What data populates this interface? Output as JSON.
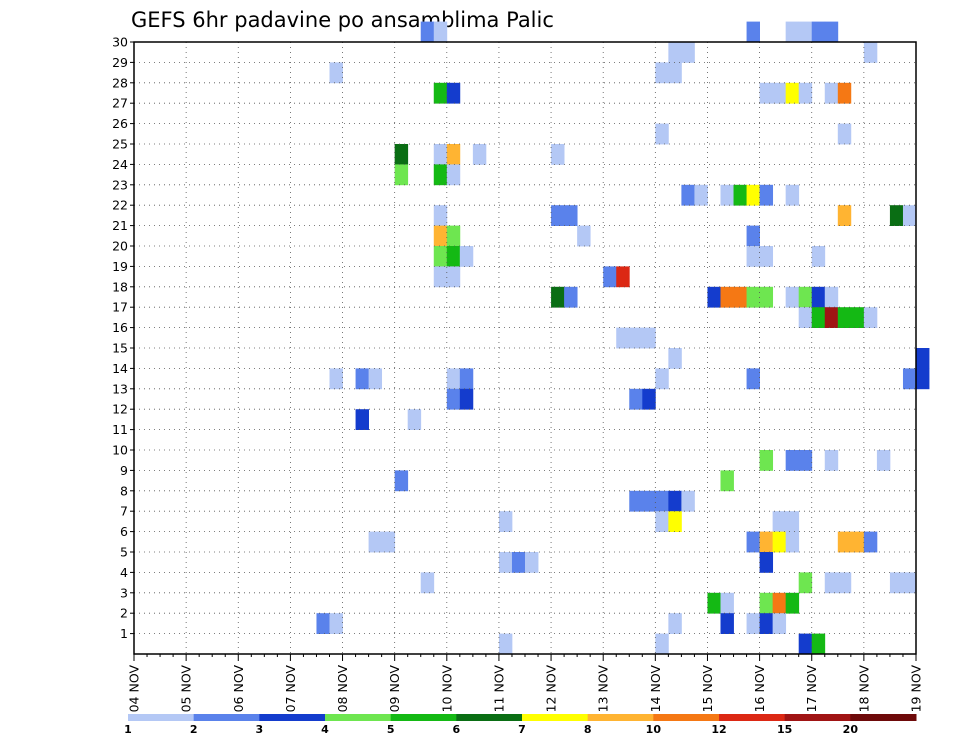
{
  "chart_data": {
    "type": "heatmap",
    "title": "GEFS 6hr padavine po ansamblima Palic",
    "x_tick_labels": [
      "04 NOV",
      "05 NOV",
      "06 NOV",
      "07 NOV",
      "08 NOV",
      "09 NOV",
      "10 NOV",
      "11 NOV",
      "12 NOV",
      "13 NOV",
      "14 NOV",
      "15 NOV",
      "16 NOV",
      "17 NOV",
      "18 NOV",
      "19 NOV"
    ],
    "y_tick_labels": [
      "1",
      "2",
      "3",
      "4",
      "5",
      "6",
      "7",
      "8",
      "9",
      "10",
      "11",
      "12",
      "13",
      "14",
      "15",
      "16",
      "17",
      "18",
      "19",
      "20",
      "21",
      "22",
      "23",
      "24",
      "25",
      "26",
      "27",
      "28",
      "29",
      "30"
    ],
    "time_step_hours": 6,
    "grid": true,
    "legend": {
      "placement": "bottom",
      "labels": [
        "1",
        "2",
        "3",
        "4",
        "5",
        "6",
        "7",
        "8",
        "10",
        "12",
        "15",
        "20"
      ],
      "colors": [
        "#b4c8f5",
        "#5a82eb",
        "#143ccd",
        "#6ee650",
        "#14b914",
        "#0a6e14",
        "#ffff00",
        "#ffb432",
        "#f57814",
        "#dc2814",
        "#a01414",
        "#6e0a0a"
      ]
    },
    "cells": [
      {
        "m": 30,
        "t": [
          [
            22,
            2
          ],
          [
            23,
            1
          ],
          [
            47,
            2
          ],
          [
            50,
            1
          ],
          [
            51,
            1
          ],
          [
            52,
            2
          ],
          [
            53,
            2
          ]
        ]
      },
      {
        "m": 29,
        "t": [
          [
            41,
            1
          ],
          [
            42,
            1
          ],
          [
            56,
            1
          ]
        ]
      },
      {
        "m": 28,
        "t": [
          [
            15,
            1
          ],
          [
            40,
            1
          ],
          [
            41,
            1
          ]
        ]
      },
      {
        "m": 27,
        "t": [
          [
            23,
            5
          ],
          [
            24,
            3
          ],
          [
            48,
            1
          ],
          [
            49,
            1
          ],
          [
            50,
            7
          ],
          [
            51,
            1
          ],
          [
            53,
            1
          ],
          [
            54,
            10
          ]
        ]
      },
      {
        "m": 25,
        "t": [
          [
            40,
            1
          ],
          [
            54,
            1
          ]
        ]
      },
      {
        "m": 24,
        "t": [
          [
            20,
            6
          ],
          [
            23,
            1
          ],
          [
            24,
            9
          ],
          [
            26,
            1
          ],
          [
            32,
            1
          ]
        ]
      },
      {
        "m": 23,
        "t": [
          [
            20,
            4
          ],
          [
            23,
            5
          ],
          [
            24,
            1
          ]
        ]
      },
      {
        "m": 22,
        "t": [
          [
            42,
            2
          ],
          [
            43,
            1
          ],
          [
            45,
            1
          ],
          [
            46,
            5
          ],
          [
            47,
            7
          ],
          [
            48,
            2
          ],
          [
            50,
            1
          ]
        ]
      },
      {
        "m": 21,
        "t": [
          [
            23,
            1
          ],
          [
            32,
            2
          ],
          [
            33,
            2
          ],
          [
            54,
            8
          ],
          [
            58,
            6
          ],
          [
            59,
            1
          ]
        ]
      },
      {
        "m": 20,
        "t": [
          [
            23,
            8
          ],
          [
            24,
            4
          ],
          [
            34,
            1
          ],
          [
            47,
            2
          ]
        ]
      },
      {
        "m": 19,
        "t": [
          [
            23,
            4
          ],
          [
            24,
            5
          ],
          [
            25,
            1
          ],
          [
            47,
            1
          ],
          [
            48,
            1
          ],
          [
            52,
            1
          ]
        ]
      },
      {
        "m": 18,
        "t": [
          [
            23,
            1
          ],
          [
            24,
            1
          ],
          [
            36,
            2
          ],
          [
            37,
            12
          ]
        ]
      },
      {
        "m": 17,
        "t": [
          [
            32,
            6
          ],
          [
            33,
            2
          ],
          [
            44,
            3
          ],
          [
            45,
            10
          ],
          [
            46,
            10
          ],
          [
            47,
            4
          ],
          [
            48,
            4
          ],
          [
            50,
            1
          ],
          [
            51,
            4
          ],
          [
            52,
            3
          ],
          [
            53,
            1
          ]
        ]
      },
      {
        "m": 16,
        "t": [
          [
            51,
            1
          ],
          [
            52,
            5
          ],
          [
            53,
            15
          ],
          [
            54,
            5
          ],
          [
            55,
            5
          ],
          [
            56,
            1
          ]
        ]
      },
      {
        "m": 15,
        "t": [
          [
            37,
            1
          ],
          [
            38,
            1
          ],
          [
            39,
            1
          ]
        ]
      },
      {
        "m": 14,
        "t": [
          [
            41,
            1
          ],
          [
            60,
            3
          ]
        ]
      },
      {
        "m": 13,
        "t": [
          [
            15,
            1
          ],
          [
            17,
            2
          ],
          [
            18,
            1
          ],
          [
            24,
            1
          ],
          [
            25,
            2
          ],
          [
            40,
            1
          ],
          [
            47,
            2
          ],
          [
            59,
            2
          ],
          [
            60,
            3
          ]
        ]
      },
      {
        "m": 12,
        "t": [
          [
            24,
            2
          ],
          [
            25,
            3
          ],
          [
            38,
            2
          ],
          [
            39,
            3
          ]
        ]
      },
      {
        "m": 11,
        "t": [
          [
            17,
            3
          ],
          [
            21,
            1
          ]
        ]
      },
      {
        "m": 9,
        "t": [
          [
            48,
            4
          ],
          [
            50,
            2
          ],
          [
            51,
            2
          ],
          [
            53,
            1
          ],
          [
            57,
            1
          ]
        ]
      },
      {
        "m": 8,
        "t": [
          [
            20,
            2
          ],
          [
            45,
            4
          ]
        ]
      },
      {
        "m": 7,
        "t": [
          [
            38,
            2
          ],
          [
            39,
            2
          ],
          [
            40,
            2
          ],
          [
            41,
            3
          ],
          [
            42,
            1
          ]
        ]
      },
      {
        "m": 6,
        "t": [
          [
            28,
            1
          ],
          [
            40,
            1
          ],
          [
            41,
            7
          ],
          [
            49,
            1
          ],
          [
            50,
            1
          ]
        ]
      },
      {
        "m": 5,
        "t": [
          [
            18,
            1
          ],
          [
            19,
            1
          ],
          [
            47,
            2
          ],
          [
            48,
            9
          ],
          [
            49,
            7
          ],
          [
            50,
            1
          ],
          [
            54,
            9
          ],
          [
            55,
            9
          ],
          [
            56,
            2
          ]
        ]
      },
      {
        "m": 4,
        "t": [
          [
            28,
            1
          ],
          [
            29,
            2
          ],
          [
            30,
            1
          ],
          [
            48,
            3
          ]
        ]
      },
      {
        "m": 3,
        "t": [
          [
            22,
            1
          ],
          [
            51,
            4
          ],
          [
            53,
            1
          ],
          [
            54,
            1
          ],
          [
            58,
            1
          ],
          [
            59,
            1
          ]
        ]
      },
      {
        "m": 2,
        "t": [
          [
            44,
            5
          ],
          [
            45,
            1
          ],
          [
            48,
            4
          ],
          [
            49,
            11
          ],
          [
            50,
            5
          ]
        ]
      },
      {
        "m": 1,
        "t": [
          [
            14,
            2
          ],
          [
            15,
            1
          ],
          [
            41,
            1
          ],
          [
            45,
            3
          ],
          [
            47,
            1
          ],
          [
            48,
            3
          ],
          [
            49,
            1
          ]
        ]
      },
      {
        "m": 0,
        "t": [
          [
            28,
            1
          ],
          [
            40,
            1
          ],
          [
            51,
            3
          ],
          [
            52,
            5
          ]
        ]
      }
    ]
  }
}
